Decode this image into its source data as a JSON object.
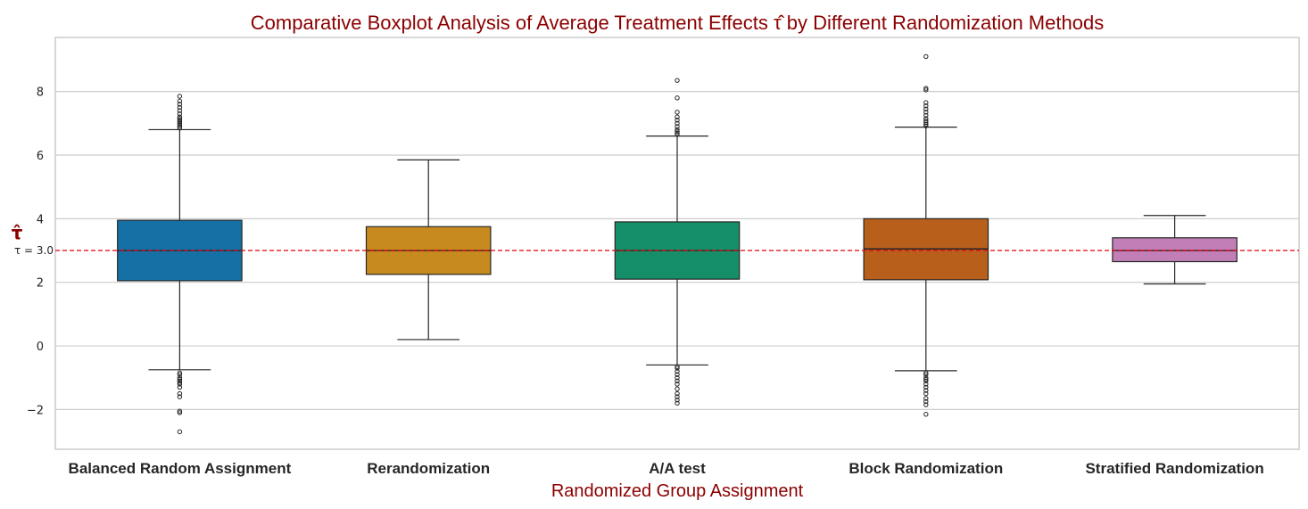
{
  "chart_data": {
    "type": "box",
    "title": "Comparative Boxplot Analysis of Average Treatment Effects τ̂ by Different Randomization Methods",
    "xlabel": "Randomized Group Assignment",
    "ylabel": "τ̂",
    "ylim": [
      -3.25,
      9.7
    ],
    "yticks": [
      -2,
      0,
      2,
      4,
      6,
      8
    ],
    "ytick_labels": [
      "−2",
      "0",
      "2",
      "4",
      "6",
      "8"
    ],
    "grid": true,
    "reference_line": {
      "value": 3.0,
      "label": "τ = 3.0",
      "color": "#e3000f"
    },
    "colors": {
      "title": "#8b0000",
      "axis_label": "#8b0000",
      "grid": "#cccccc",
      "frame": "#cccccc",
      "box_edge": "#262626"
    },
    "categories": [
      "Balanced Random Assignment",
      "Rerandomization",
      "A/A test",
      "Block Randomization",
      "Stratified Randomization"
    ],
    "boxes": [
      {
        "category": "Balanced Random Assignment",
        "color": "#1570a6",
        "whislo": -0.75,
        "q1": 2.05,
        "med": 3.0,
        "q3": 3.95,
        "whishi": 6.8,
        "fliers": [
          6.85,
          6.9,
          6.95,
          7.0,
          7.05,
          7.1,
          7.15,
          7.2,
          7.3,
          7.4,
          7.5,
          7.6,
          7.7,
          7.85,
          -0.85,
          -0.9,
          -1.0,
          -1.05,
          -1.1,
          -1.15,
          -1.2,
          -1.3,
          -1.5,
          -1.6,
          -2.05,
          -2.1,
          -2.7
        ]
      },
      {
        "category": "Rerandomization",
        "color": "#c78a1f",
        "whislo": 0.2,
        "q1": 2.25,
        "med": 3.0,
        "q3": 3.75,
        "whishi": 5.85,
        "fliers": []
      },
      {
        "category": "A/A test",
        "color": "#158f6a",
        "whislo": -0.6,
        "q1": 2.1,
        "med": 3.0,
        "q3": 3.9,
        "whishi": 6.6,
        "fliers": [
          6.65,
          6.7,
          6.75,
          6.8,
          6.9,
          7.0,
          7.1,
          7.2,
          7.35,
          7.8,
          8.35,
          -0.65,
          -0.7,
          -0.8,
          -0.9,
          -1.0,
          -1.1,
          -1.2,
          -1.35,
          -1.5,
          -1.6,
          -1.7,
          -1.8
        ]
      },
      {
        "category": "Block Randomization",
        "color": "#b85f1c",
        "whislo": -0.78,
        "q1": 2.08,
        "med": 3.05,
        "q3": 4.0,
        "whishi": 6.88,
        "fliers": [
          6.92,
          6.97,
          7.02,
          7.08,
          7.15,
          7.25,
          7.35,
          7.45,
          7.55,
          7.65,
          8.05,
          8.1,
          9.1,
          -0.85,
          -0.9,
          -1.0,
          -1.05,
          -1.1,
          -1.2,
          -1.3,
          -1.4,
          -1.5,
          -1.65,
          -1.75,
          -1.85,
          -2.15
        ]
      },
      {
        "category": "Stratified Randomization",
        "color": "#c27fb7",
        "whislo": 1.95,
        "q1": 2.65,
        "med": 3.0,
        "q3": 3.4,
        "whishi": 4.1,
        "fliers": []
      }
    ]
  }
}
